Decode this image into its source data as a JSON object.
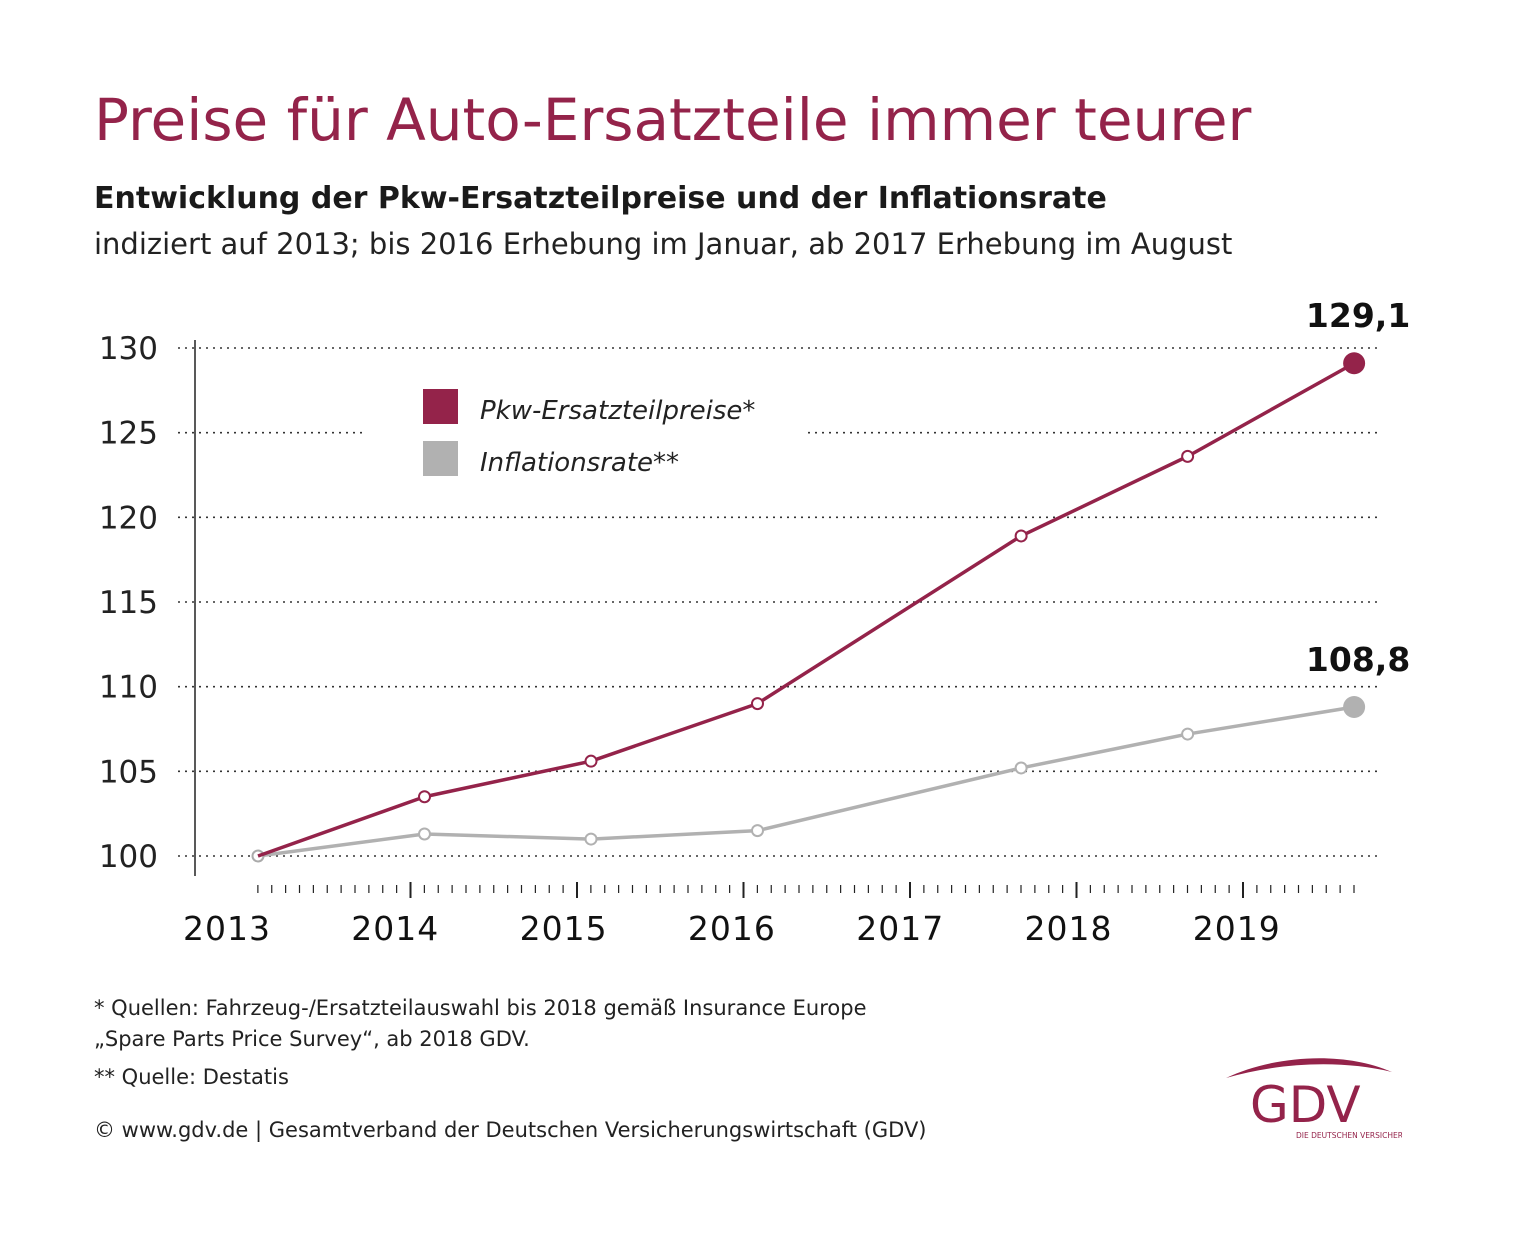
{
  "header": {
    "title": "Preise für Auto-Ersatzteile immer teurer",
    "subtitle": "Entwicklung der Pkw-Ersatzteilpreise und der Inflationsrate",
    "subtitle2": "indiziert auf 2013; bis 2016 Erhebung im Januar, ab 2017 Erhebung im August"
  },
  "chart_data": {
    "type": "line",
    "title": "Entwicklung der Pkw-Ersatzteilpreise und der Inflationsrate",
    "xlabel": "",
    "ylabel": "",
    "ylim": [
      100,
      130
    ],
    "yticks": [
      "100",
      "105",
      "110",
      "115",
      "120",
      "125",
      "130"
    ],
    "ytick_values": [
      100,
      105,
      110,
      115,
      120,
      125,
      130
    ],
    "year_labels": [
      "2013",
      "2014",
      "2015",
      "2016",
      "2017",
      "2018",
      "2019"
    ],
    "grid": "dotted-horizontal",
    "legend": "top-left",
    "series": [
      {
        "name": "Pkw-Ersatzteilpreise*",
        "color": "#94234a",
        "x": [
          "Jan 2013",
          "Jan 2014",
          "Jan 2015",
          "Jan 2016",
          "Aug 2017",
          "Aug 2018",
          "Aug 2019"
        ],
        "values": [
          100,
          103.5,
          105.6,
          109.0,
          118.9,
          123.6,
          129.1
        ],
        "end_label": "129,1"
      },
      {
        "name": "Inflationsrate**",
        "color": "#b1b1b1",
        "x": [
          "Jan 2013",
          "Jan 2014",
          "Jan 2015",
          "Jan 2016",
          "Aug 2017",
          "Aug 2018",
          "Aug 2019"
        ],
        "values": [
          100,
          101.3,
          101.0,
          101.5,
          105.2,
          107.2,
          108.8
        ],
        "end_label": "108,8"
      }
    ]
  },
  "footer": {
    "note1_line1": "* Quellen: Fahrzeug-/Ersatzteilauswahl bis 2018 gemäß Insurance Europe",
    "note1_line2": "„Spare Parts Price Survey“, ab 2018 GDV.",
    "note2": "** Quelle: Destatis",
    "copyright": "© www.gdv.de | Gesamtverband der Deutschen Versicherungswirtschaft (GDV)"
  },
  "logo": {
    "text": "GDV",
    "tagline": "DIE DEUTSCHEN VERSICHERER",
    "color": "#94234a"
  }
}
